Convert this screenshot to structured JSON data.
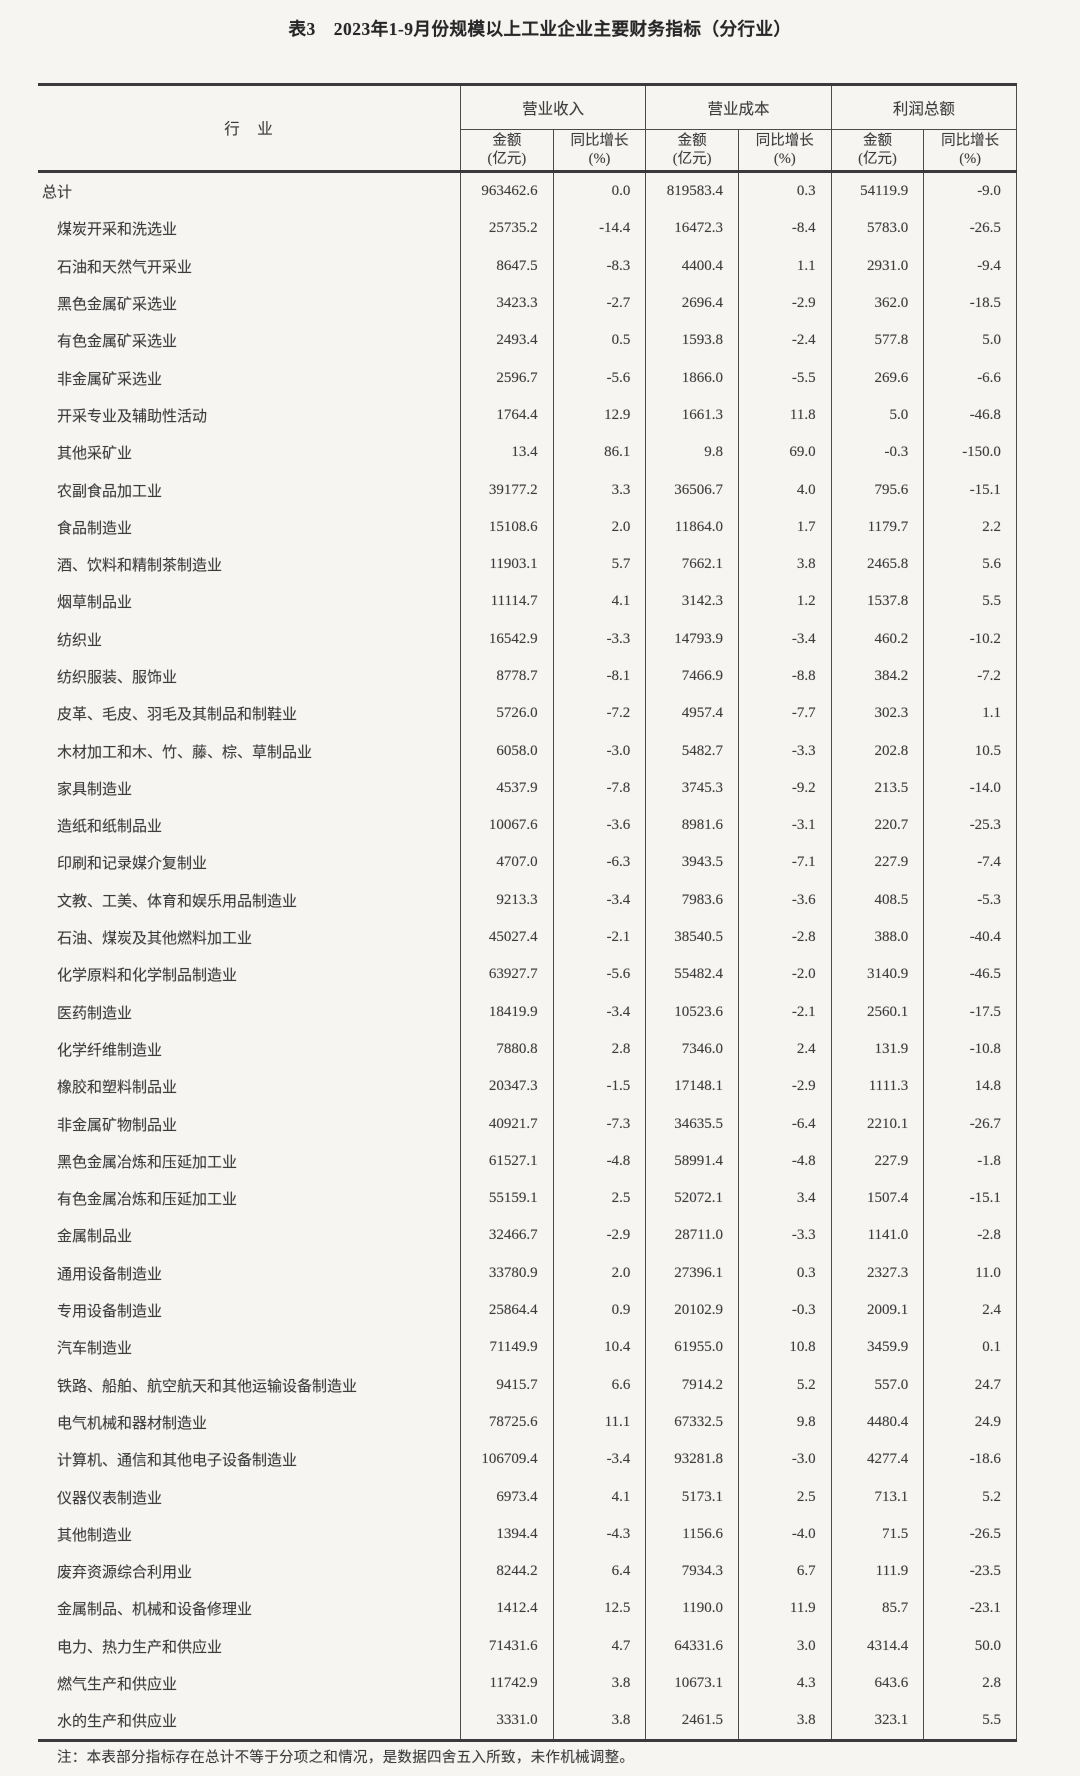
{
  "page": {
    "title": "表3　2023年1-9月份规模以上工业企业主要财务指标（分行业）",
    "footnote": "注：本表部分指标存在总计不等于分项之和情况，是数据四舍五入所致，未作机械调整。"
  },
  "table": {
    "industry_header": "行　业",
    "groups": [
      {
        "label": "营业收入"
      },
      {
        "label": "营业成本"
      },
      {
        "label": "利润总额"
      }
    ],
    "sub_headers": {
      "amount_line1": "金额",
      "amount_line2": "(亿元)",
      "growth_line1": "同比增长",
      "growth_line2": "(%)"
    },
    "rows": [
      {
        "label": "总计",
        "indent": false,
        "values": [
          "963462.6",
          "0.0",
          "819583.4",
          "0.3",
          "54119.9",
          "-9.0"
        ]
      },
      {
        "label": "煤炭开采和洗选业",
        "indent": true,
        "values": [
          "25735.2",
          "-14.4",
          "16472.3",
          "-8.4",
          "5783.0",
          "-26.5"
        ]
      },
      {
        "label": "石油和天然气开采业",
        "indent": true,
        "values": [
          "8647.5",
          "-8.3",
          "4400.4",
          "1.1",
          "2931.0",
          "-9.4"
        ]
      },
      {
        "label": "黑色金属矿采选业",
        "indent": true,
        "values": [
          "3423.3",
          "-2.7",
          "2696.4",
          "-2.9",
          "362.0",
          "-18.5"
        ]
      },
      {
        "label": "有色金属矿采选业",
        "indent": true,
        "values": [
          "2493.4",
          "0.5",
          "1593.8",
          "-2.4",
          "577.8",
          "5.0"
        ]
      },
      {
        "label": "非金属矿采选业",
        "indent": true,
        "values": [
          "2596.7",
          "-5.6",
          "1866.0",
          "-5.5",
          "269.6",
          "-6.6"
        ]
      },
      {
        "label": "开采专业及辅助性活动",
        "indent": true,
        "values": [
          "1764.4",
          "12.9",
          "1661.3",
          "11.8",
          "5.0",
          "-46.8"
        ]
      },
      {
        "label": "其他采矿业",
        "indent": true,
        "values": [
          "13.4",
          "86.1",
          "9.8",
          "69.0",
          "-0.3",
          "-150.0"
        ]
      },
      {
        "label": "农副食品加工业",
        "indent": true,
        "values": [
          "39177.2",
          "3.3",
          "36506.7",
          "4.0",
          "795.6",
          "-15.1"
        ]
      },
      {
        "label": "食品制造业",
        "indent": true,
        "values": [
          "15108.6",
          "2.0",
          "11864.0",
          "1.7",
          "1179.7",
          "2.2"
        ]
      },
      {
        "label": "酒、饮料和精制茶制造业",
        "indent": true,
        "values": [
          "11903.1",
          "5.7",
          "7662.1",
          "3.8",
          "2465.8",
          "5.6"
        ]
      },
      {
        "label": "烟草制品业",
        "indent": true,
        "values": [
          "11114.7",
          "4.1",
          "3142.3",
          "1.2",
          "1537.8",
          "5.5"
        ]
      },
      {
        "label": "纺织业",
        "indent": true,
        "values": [
          "16542.9",
          "-3.3",
          "14793.9",
          "-3.4",
          "460.2",
          "-10.2"
        ]
      },
      {
        "label": "纺织服装、服饰业",
        "indent": true,
        "values": [
          "8778.7",
          "-8.1",
          "7466.9",
          "-8.8",
          "384.2",
          "-7.2"
        ]
      },
      {
        "label": "皮革、毛皮、羽毛及其制品和制鞋业",
        "indent": true,
        "values": [
          "5726.0",
          "-7.2",
          "4957.4",
          "-7.7",
          "302.3",
          "1.1"
        ]
      },
      {
        "label": "木材加工和木、竹、藤、棕、草制品业",
        "indent": true,
        "values": [
          "6058.0",
          "-3.0",
          "5482.7",
          "-3.3",
          "202.8",
          "10.5"
        ]
      },
      {
        "label": "家具制造业",
        "indent": true,
        "values": [
          "4537.9",
          "-7.8",
          "3745.3",
          "-9.2",
          "213.5",
          "-14.0"
        ]
      },
      {
        "label": "造纸和纸制品业",
        "indent": true,
        "values": [
          "10067.6",
          "-3.6",
          "8981.6",
          "-3.1",
          "220.7",
          "-25.3"
        ]
      },
      {
        "label": "印刷和记录媒介复制业",
        "indent": true,
        "values": [
          "4707.0",
          "-6.3",
          "3943.5",
          "-7.1",
          "227.9",
          "-7.4"
        ]
      },
      {
        "label": "文教、工美、体育和娱乐用品制造业",
        "indent": true,
        "values": [
          "9213.3",
          "-3.4",
          "7983.6",
          "-3.6",
          "408.5",
          "-5.3"
        ]
      },
      {
        "label": "石油、煤炭及其他燃料加工业",
        "indent": true,
        "values": [
          "45027.4",
          "-2.1",
          "38540.5",
          "-2.8",
          "388.0",
          "-40.4"
        ]
      },
      {
        "label": "化学原料和化学制品制造业",
        "indent": true,
        "values": [
          "63927.7",
          "-5.6",
          "55482.4",
          "-2.0",
          "3140.9",
          "-46.5"
        ]
      },
      {
        "label": "医药制造业",
        "indent": true,
        "values": [
          "18419.9",
          "-3.4",
          "10523.6",
          "-2.1",
          "2560.1",
          "-17.5"
        ]
      },
      {
        "label": "化学纤维制造业",
        "indent": true,
        "values": [
          "7880.8",
          "2.8",
          "7346.0",
          "2.4",
          "131.9",
          "-10.8"
        ]
      },
      {
        "label": "橡胶和塑料制品业",
        "indent": true,
        "values": [
          "20347.3",
          "-1.5",
          "17148.1",
          "-2.9",
          "1111.3",
          "14.8"
        ]
      },
      {
        "label": "非金属矿物制品业",
        "indent": true,
        "values": [
          "40921.7",
          "-7.3",
          "34635.5",
          "-6.4",
          "2210.1",
          "-26.7"
        ]
      },
      {
        "label": "黑色金属冶炼和压延加工业",
        "indent": true,
        "values": [
          "61527.1",
          "-4.8",
          "58991.4",
          "-4.8",
          "227.9",
          "-1.8"
        ]
      },
      {
        "label": "有色金属冶炼和压延加工业",
        "indent": true,
        "values": [
          "55159.1",
          "2.5",
          "52072.1",
          "3.4",
          "1507.4",
          "-15.1"
        ]
      },
      {
        "label": "金属制品业",
        "indent": true,
        "values": [
          "32466.7",
          "-2.9",
          "28711.0",
          "-3.3",
          "1141.0",
          "-2.8"
        ]
      },
      {
        "label": "通用设备制造业",
        "indent": true,
        "values": [
          "33780.9",
          "2.0",
          "27396.1",
          "0.3",
          "2327.3",
          "11.0"
        ]
      },
      {
        "label": "专用设备制造业",
        "indent": true,
        "values": [
          "25864.4",
          "0.9",
          "20102.9",
          "-0.3",
          "2009.1",
          "2.4"
        ]
      },
      {
        "label": "汽车制造业",
        "indent": true,
        "values": [
          "71149.9",
          "10.4",
          "61955.0",
          "10.8",
          "3459.9",
          "0.1"
        ]
      },
      {
        "label": "铁路、船舶、航空航天和其他运输设备制造业",
        "indent": true,
        "values": [
          "9415.7",
          "6.6",
          "7914.2",
          "5.2",
          "557.0",
          "24.7"
        ]
      },
      {
        "label": "电气机械和器材制造业",
        "indent": true,
        "values": [
          "78725.6",
          "11.1",
          "67332.5",
          "9.8",
          "4480.4",
          "24.9"
        ]
      },
      {
        "label": "计算机、通信和其他电子设备制造业",
        "indent": true,
        "values": [
          "106709.4",
          "-3.4",
          "93281.8",
          "-3.0",
          "4277.4",
          "-18.6"
        ]
      },
      {
        "label": "仪器仪表制造业",
        "indent": true,
        "values": [
          "6973.4",
          "4.1",
          "5173.1",
          "2.5",
          "713.1",
          "5.2"
        ]
      },
      {
        "label": "其他制造业",
        "indent": true,
        "values": [
          "1394.4",
          "-4.3",
          "1156.6",
          "-4.0",
          "71.5",
          "-26.5"
        ]
      },
      {
        "label": "废弃资源综合利用业",
        "indent": true,
        "values": [
          "8244.2",
          "6.4",
          "7934.3",
          "6.7",
          "111.9",
          "-23.5"
        ]
      },
      {
        "label": "金属制品、机械和设备修理业",
        "indent": true,
        "values": [
          "1412.4",
          "12.5",
          "1190.0",
          "11.9",
          "85.7",
          "-23.1"
        ]
      },
      {
        "label": "电力、热力生产和供应业",
        "indent": true,
        "values": [
          "71431.6",
          "4.7",
          "64331.6",
          "3.0",
          "4314.4",
          "50.0"
        ]
      },
      {
        "label": "燃气生产和供应业",
        "indent": true,
        "values": [
          "11742.9",
          "3.8",
          "10673.1",
          "4.3",
          "643.6",
          "2.8"
        ]
      },
      {
        "label": "水的生产和供应业",
        "indent": true,
        "values": [
          "3331.0",
          "3.8",
          "2461.5",
          "3.8",
          "323.1",
          "5.5"
        ]
      }
    ]
  }
}
